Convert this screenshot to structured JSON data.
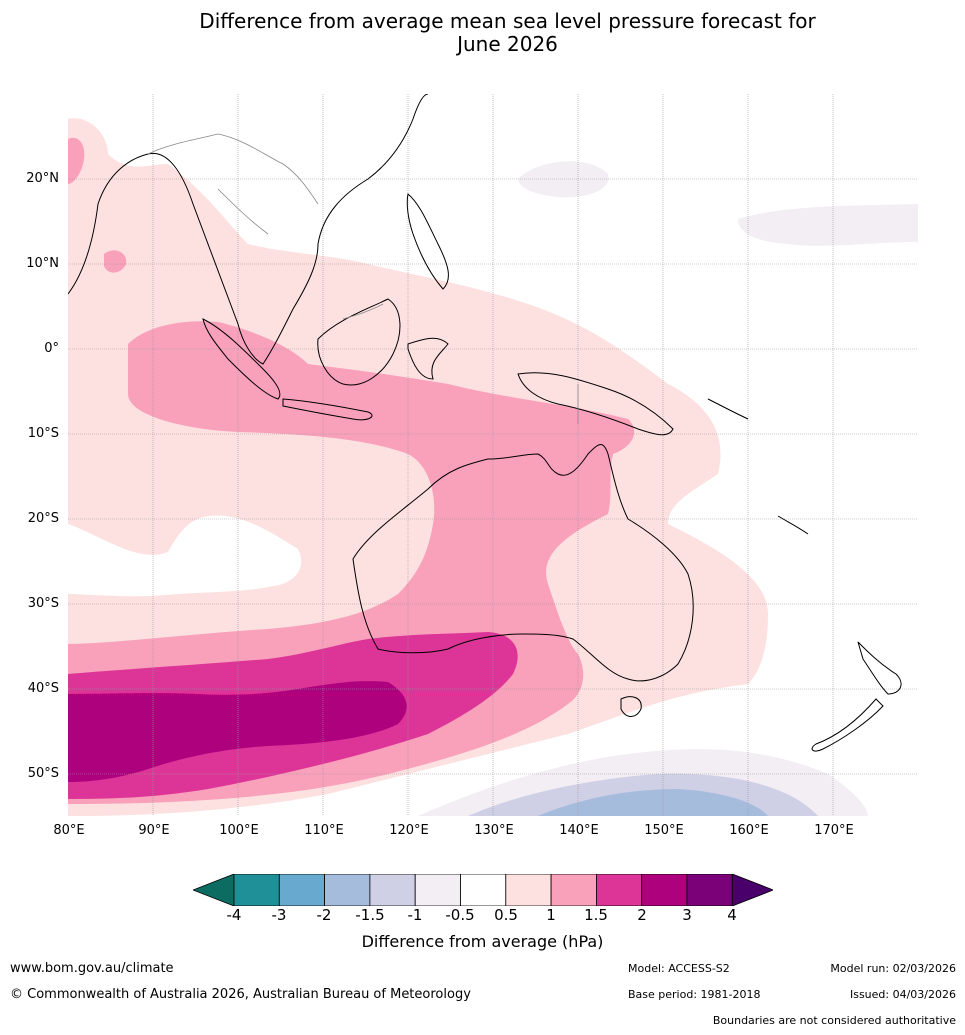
{
  "title": {
    "line1": "Difference from average mean sea level pressure forecast for",
    "line2": "June 2026"
  },
  "map": {
    "region": "Australia, Maritime Continent and South-West Pacific",
    "lon_range": [
      80,
      180
    ],
    "lat_range": [
      -55,
      30
    ],
    "lat_labels": [
      "20°N",
      "10°N",
      "0°",
      "10°S",
      "20°S",
      "30°S",
      "40°S",
      "50°S"
    ],
    "lon_labels": [
      "80°E",
      "90°E",
      "100°E",
      "110°E",
      "120°E",
      "130°E",
      "140°E",
      "150°E",
      "160°E",
      "170°E"
    ]
  },
  "colorbar": {
    "label": "Difference from average (hPa)",
    "ticks": [
      "-4",
      "-3",
      "-2",
      "-1.5",
      "-1",
      "-0.5",
      "0.5",
      "1",
      "1.5",
      "2",
      "3",
      "4"
    ],
    "colors": [
      "#0d6c62",
      "#1f8f98",
      "#67a9cf",
      "#a6bcdc",
      "#cfcfe6",
      "#f2eef4",
      "#ffffff",
      "#fde0e0",
      "#f9a0ba",
      "#dd3497",
      "#ae017e",
      "#7a0177",
      "#49006a"
    ]
  },
  "footer": {
    "website": "www.bom.gov.au/climate",
    "copyright": "© Commonwealth of Australia 2026, Australian Bureau of Meteorology",
    "model": "Model: ACCESS-S2",
    "base_period": "Base period: 1981-2018",
    "model_run": "Model run: 02/03/2026",
    "issued": "Issued: 04/03/2026",
    "disclaimer": "Boundaries are not considered authoritative"
  }
}
